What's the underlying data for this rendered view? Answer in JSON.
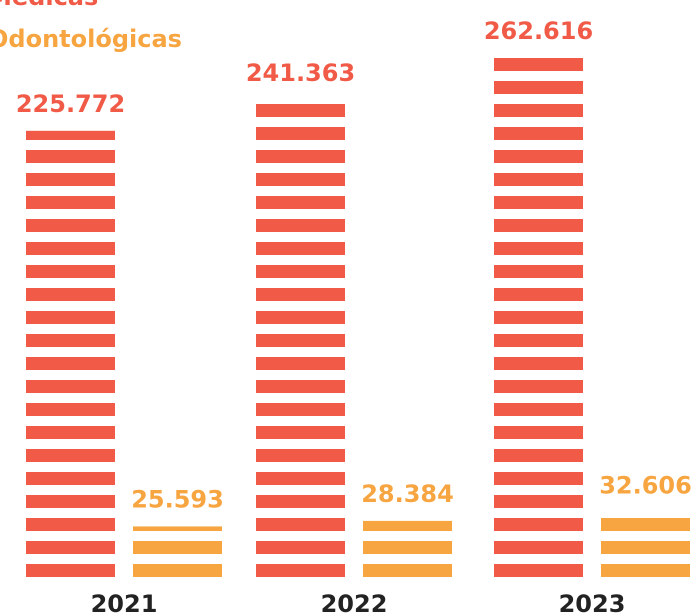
{
  "chart_data": {
    "type": "bar",
    "categories": [
      "2021",
      "2022",
      "2023"
    ],
    "series": [
      {
        "name": "Médicas",
        "color": "#f05a46",
        "values": [
          225772,
          241363,
          262616
        ],
        "value_labels": [
          "225.772",
          "241.363",
          "262.616"
        ]
      },
      {
        "name": "Odontológicas",
        "color": "#f7a541",
        "values": [
          25593,
          28384,
          32606
        ],
        "value_labels": [
          "25.593",
          "28.384",
          "32.606"
        ]
      }
    ]
  }
}
